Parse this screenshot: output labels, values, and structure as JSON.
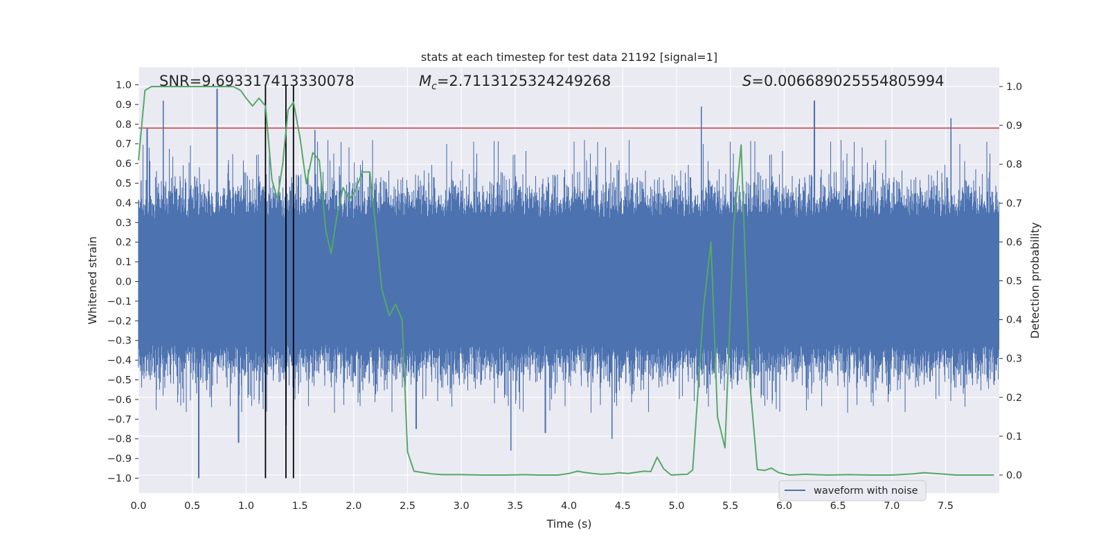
{
  "chart_data": {
    "type": "line",
    "title": "stats at each timestep for test data 21192 [signal=1]",
    "xlabel": "Time (s)",
    "ylabel_left": "Whitened strain",
    "ylabel_right": "Detection probability",
    "xlim": [
      0.0,
      8.0
    ],
    "ylim_left": [
      -1.1,
      1.05
    ],
    "ylim_right": [
      -0.05,
      1.03
    ],
    "x_ticks": [
      "0.0",
      "0.5",
      "1.0",
      "1.5",
      "2.0",
      "2.5",
      "3.0",
      "3.5",
      "4.0",
      "4.5",
      "5.0",
      "5.5",
      "6.0",
      "6.5",
      "7.0",
      "7.5"
    ],
    "y_ticks_left": [
      "1.0",
      "0.9",
      "0.8",
      "0.7",
      "0.6",
      "0.5",
      "0.4",
      "0.3",
      "0.2",
      "0.1",
      "0.0",
      "−0.1",
      "−0.2",
      "−0.3",
      "−0.4",
      "−0.5",
      "−0.6",
      "−0.7",
      "−0.8",
      "−0.9",
      "−1.0"
    ],
    "y_ticks_right": [
      "1.0",
      "0.9",
      "0.8",
      "0.7",
      "0.6",
      "0.5",
      "0.4",
      "0.3",
      "0.2",
      "0.1",
      "0.0"
    ],
    "grid": true,
    "legend": {
      "placement": "lower-right",
      "entries": [
        "waveform with noise"
      ]
    },
    "annotations": {
      "snr": "SNR=9.693317413330078",
      "mc_symbol": "M",
      "mc_sub": "c",
      "mc_value": "=2.7113125324249268",
      "s_symbol": "S",
      "s_value": "=0.006689025554805994"
    },
    "threshold": {
      "y_left": 0.78,
      "color": "#c44e52"
    },
    "vertical_markers_x": [
      1.18,
      1.37,
      1.44
    ],
    "series": [
      {
        "name": "waveform with noise",
        "axis": "left",
        "color": "#4c72b0",
        "style": "noise",
        "sample_rate": 2048,
        "spikes": [
          [
            0.08,
            0.78
          ],
          [
            0.23,
            0.92
          ],
          [
            0.56,
            -1.0
          ],
          [
            0.73,
            0.98
          ],
          [
            0.93,
            -0.82
          ],
          [
            1.37,
            -0.73
          ],
          [
            1.44,
            0.88
          ],
          [
            3.46,
            -0.86
          ],
          [
            4.4,
            -0.8
          ],
          [
            5.23,
            0.89
          ],
          [
            6.28,
            0.92
          ],
          [
            7.55,
            0.83
          ],
          [
            3.78,
            -0.77
          ],
          [
            2.58,
            -0.75
          ],
          [
            1.64,
            0.77
          ]
        ]
      },
      {
        "name": "detection probability",
        "axis": "right",
        "color": "#55a868",
        "x": [
          0.0,
          0.06,
          0.12,
          0.2,
          0.3,
          0.4,
          0.5,
          0.6,
          0.7,
          0.8,
          0.88,
          0.95,
          1.0,
          1.06,
          1.12,
          1.18,
          1.24,
          1.29,
          1.34,
          1.39,
          1.44,
          1.5,
          1.56,
          1.62,
          1.68,
          1.74,
          1.79,
          1.84,
          1.9,
          1.96,
          2.01,
          2.08,
          2.15,
          2.2,
          2.26,
          2.33,
          2.39,
          2.45,
          2.5,
          2.56,
          2.63,
          2.72,
          2.82,
          3.0,
          3.2,
          3.4,
          3.6,
          3.7,
          3.8,
          3.9,
          4.0,
          4.08,
          4.14,
          4.22,
          4.3,
          4.4,
          4.46,
          4.55,
          4.62,
          4.7,
          4.76,
          4.82,
          4.88,
          4.95,
          5.02,
          5.1,
          5.15,
          5.25,
          5.32,
          5.38,
          5.45,
          5.53,
          5.6,
          5.68,
          5.75,
          5.82,
          5.88,
          5.95,
          6.05,
          6.2,
          6.4,
          6.6,
          6.8,
          7.0,
          7.2,
          7.3,
          7.4,
          7.6,
          7.8,
          7.95
        ],
        "values": [
          0.81,
          0.99,
          1.0,
          1.0,
          1.0,
          1.0,
          1.0,
          1.0,
          1.0,
          1.0,
          1.0,
          0.99,
          0.97,
          0.95,
          0.97,
          0.95,
          0.76,
          0.71,
          0.8,
          0.94,
          0.96,
          0.87,
          0.75,
          0.83,
          0.81,
          0.63,
          0.57,
          0.66,
          0.74,
          0.71,
          0.73,
          0.78,
          0.78,
          0.65,
          0.48,
          0.41,
          0.44,
          0.4,
          0.06,
          0.01,
          0.007,
          0.003,
          0.001,
          0.001,
          0.0,
          0.0,
          0.001,
          0.0,
          0.0,
          0.0,
          0.004,
          0.01,
          0.007,
          0.004,
          0.002,
          0.003,
          0.006,
          0.004,
          0.007,
          0.01,
          0.009,
          0.046,
          0.016,
          0.0,
          0.001,
          0.002,
          0.013,
          0.43,
          0.6,
          0.15,
          0.07,
          0.64,
          0.85,
          0.24,
          0.014,
          0.012,
          0.018,
          0.006,
          0.0,
          0.002,
          0.0,
          0.001,
          0.0,
          0.0,
          0.003,
          0.006,
          0.004,
          0.0,
          0.0,
          0.0
        ]
      }
    ]
  }
}
